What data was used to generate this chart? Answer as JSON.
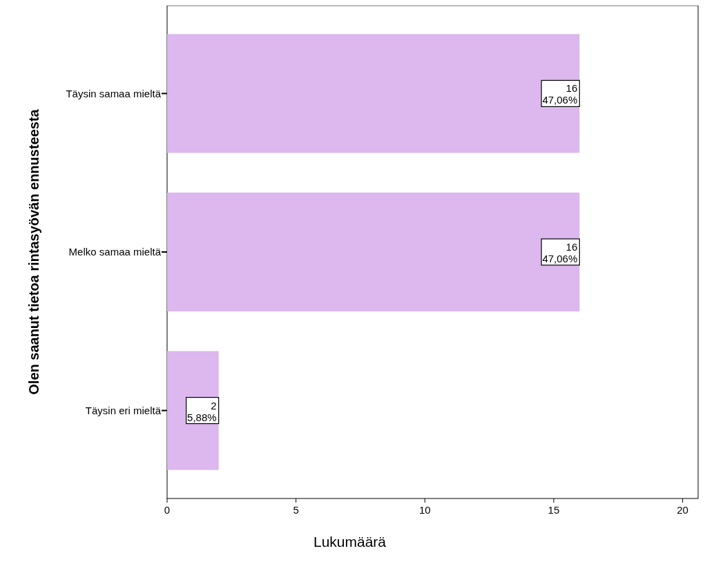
{
  "chart_data": {
    "type": "bar",
    "orientation": "horizontal",
    "ylabel": "Olen saanut tietoa rintasyövän ennusteesta",
    "xlabel": "Lukumäärä",
    "categories": [
      "Täysin samaa mieltä",
      "Melko samaa mieltä",
      "Täysin eri mieltä"
    ],
    "values": [
      16,
      16,
      2
    ],
    "value_labels": [
      "16\n47,06%",
      "16\n47,06%",
      "2\n5,88%"
    ],
    "color": "#dcb8ee",
    "xlim": [
      0,
      20.6
    ],
    "xticks": [
      0,
      5,
      10,
      15,
      20
    ],
    "grid": false
  }
}
